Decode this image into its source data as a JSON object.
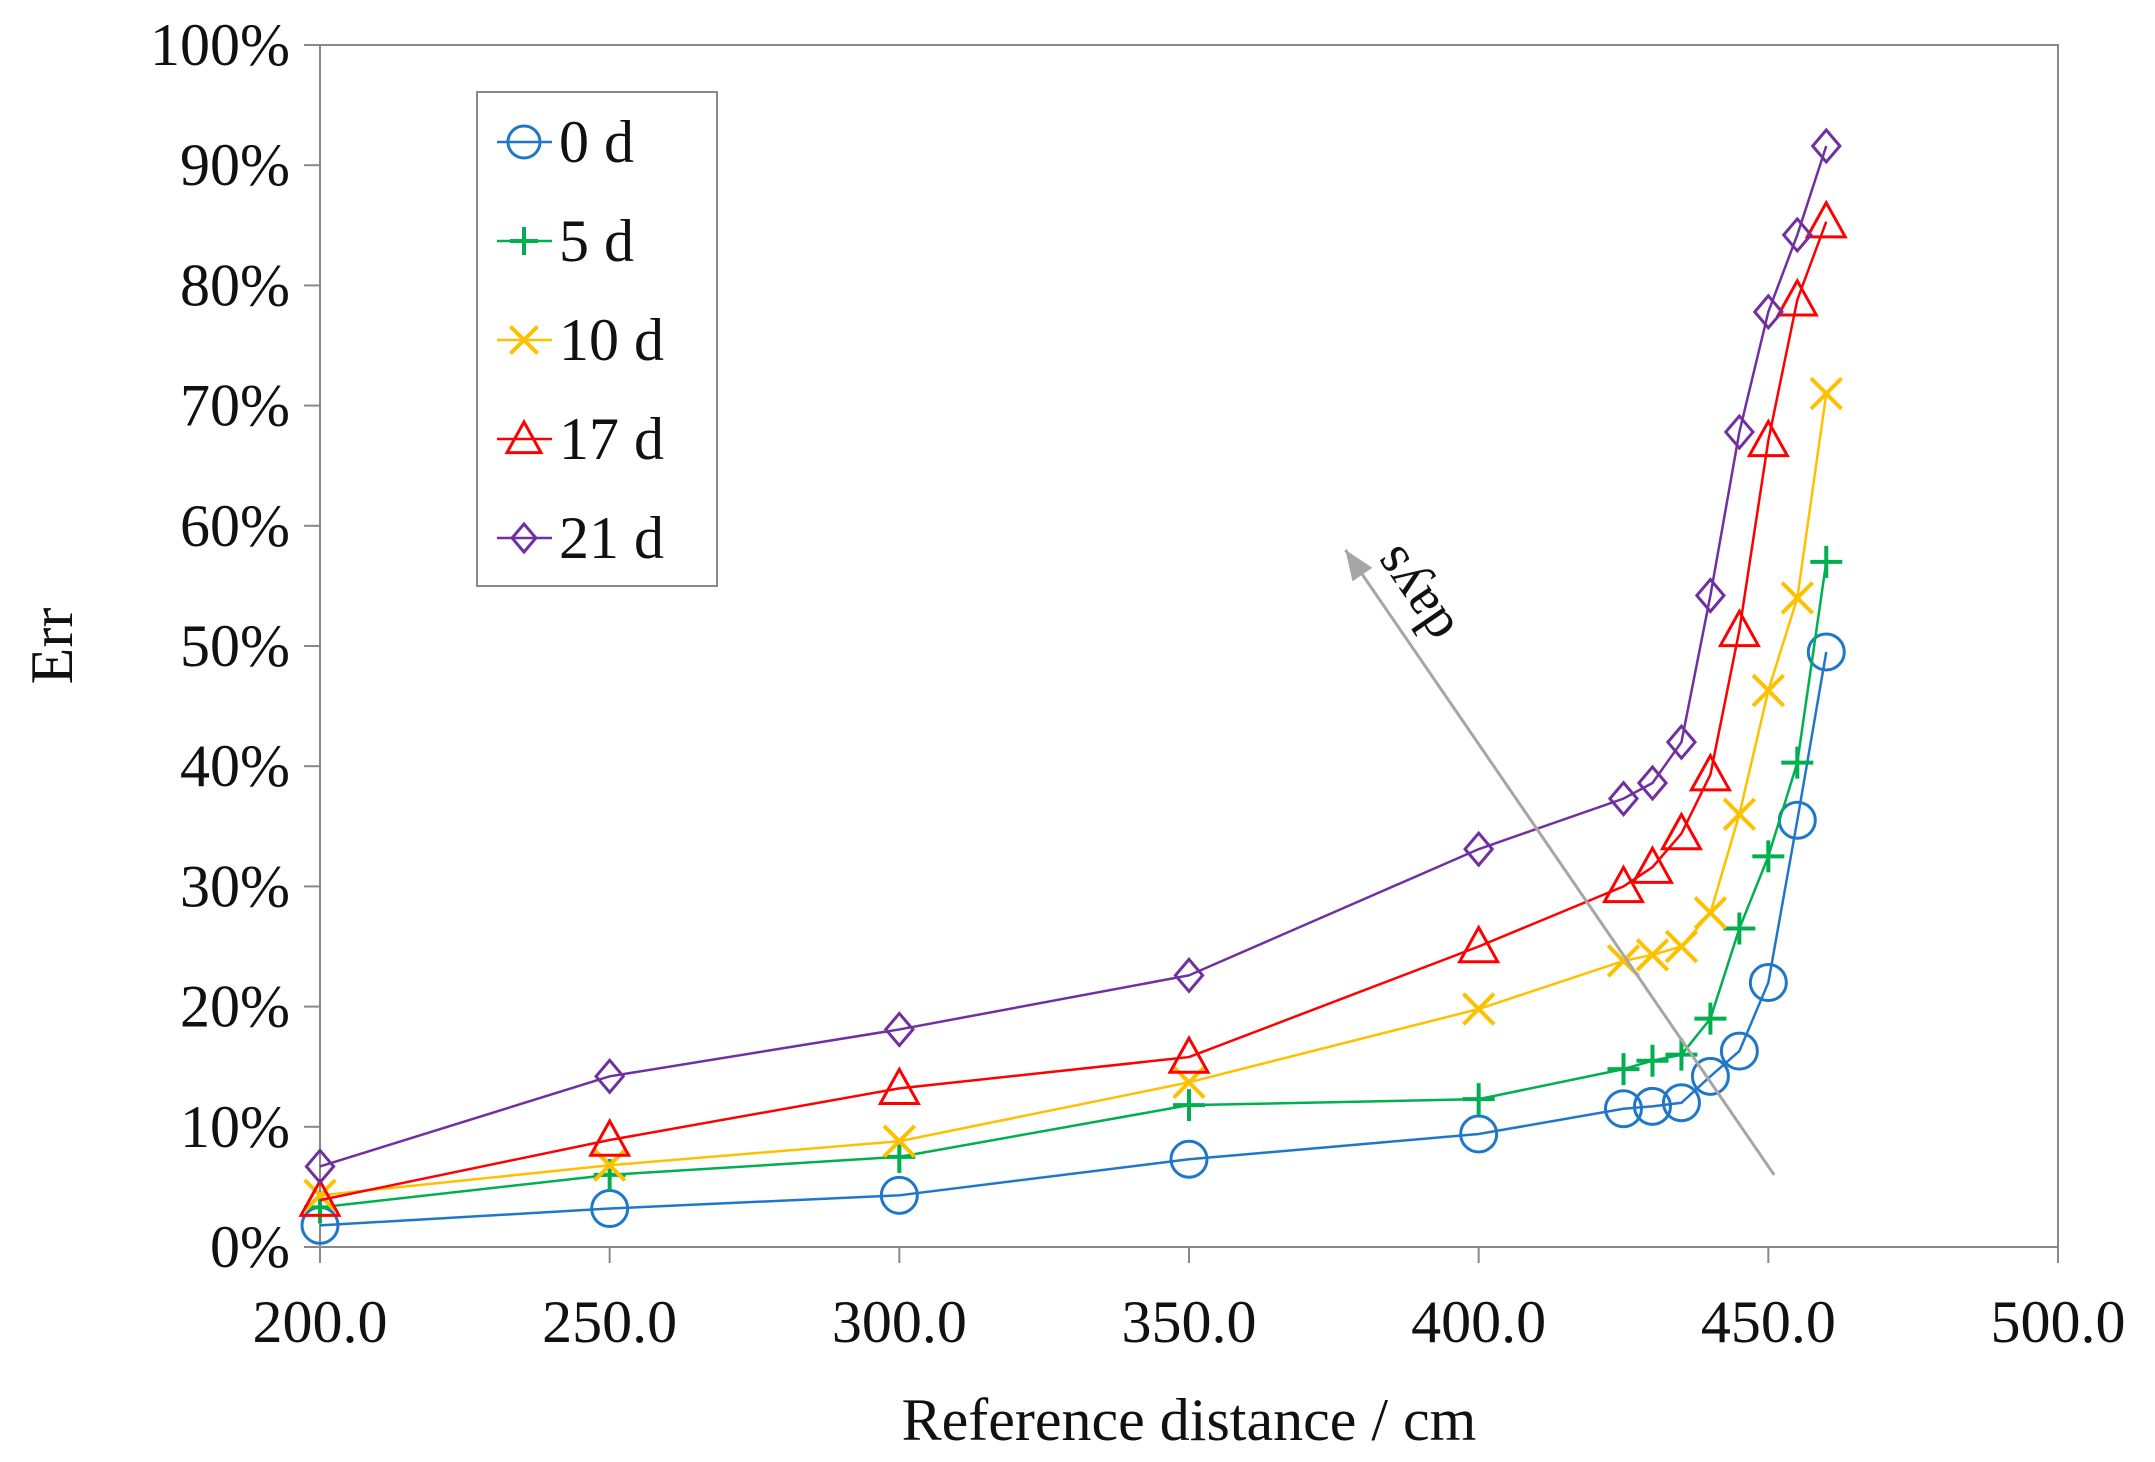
{
  "chart_data": {
    "type": "line",
    "title": "",
    "xlabel": "Reference distance / cm",
    "ylabel": "Err",
    "xlim": [
      200,
      500
    ],
    "ylim": [
      0,
      100
    ],
    "x_ticks": [
      200,
      250,
      300,
      350,
      400,
      450,
      500
    ],
    "x_tick_labels": [
      "200.0",
      "250.0",
      "300.0",
      "350.0",
      "400.0",
      "450.0",
      "500.0"
    ],
    "y_ticks": [
      0,
      10,
      20,
      30,
      40,
      50,
      60,
      70,
      80,
      90,
      100
    ],
    "y_tick_labels": [
      "0%",
      "10%",
      "20%",
      "30%",
      "40%",
      "50%",
      "60%",
      "70%",
      "80%",
      "90%",
      "100%"
    ],
    "grid": false,
    "legend_position": "top-left",
    "x": [
      200,
      250,
      300,
      350,
      400,
      425,
      430,
      435,
      440,
      445,
      450,
      455,
      460
    ],
    "series": [
      {
        "name": "0 d",
        "color": "#1f77c9",
        "marker": "circle",
        "values": [
          1.8,
          3.2,
          4.3,
          7.3,
          9.4,
          11.5,
          11.7,
          12.0,
          14.2,
          16.3,
          22.0,
          35.5,
          49.5
        ]
      },
      {
        "name": "5 d",
        "color": "#00b050",
        "marker": "plus",
        "values": [
          3.3,
          6.0,
          7.5,
          11.8,
          12.3,
          14.8,
          15.5,
          16.0,
          19.0,
          26.5,
          32.5,
          40.3,
          57.0
        ]
      },
      {
        "name": "10 d",
        "color": "#ffc000",
        "marker": "x",
        "values": [
          4.3,
          6.8,
          8.8,
          13.7,
          19.8,
          23.8,
          24.3,
          25.0,
          27.8,
          36.0,
          46.3,
          54.0,
          71.0
        ]
      },
      {
        "name": "17 d",
        "color": "#ff0000",
        "marker": "triangle",
        "values": [
          3.9,
          8.9,
          13.2,
          15.8,
          25.0,
          30.0,
          31.6,
          34.4,
          39.3,
          51.3,
          67.1,
          78.8,
          85.3
        ]
      },
      {
        "name": "21 d",
        "color": "#7030a0",
        "marker": "diamond",
        "values": [
          6.7,
          14.2,
          18.1,
          22.6,
          33.1,
          37.3,
          38.6,
          42.0,
          54.2,
          67.8,
          77.8,
          84.2,
          91.6
        ]
      }
    ],
    "annotations": [
      {
        "text": "days",
        "arrow_color": "#a6a6a6",
        "arrow_from": [
          451,
          6
        ],
        "arrow_to": [
          377,
          58
        ]
      }
    ]
  }
}
